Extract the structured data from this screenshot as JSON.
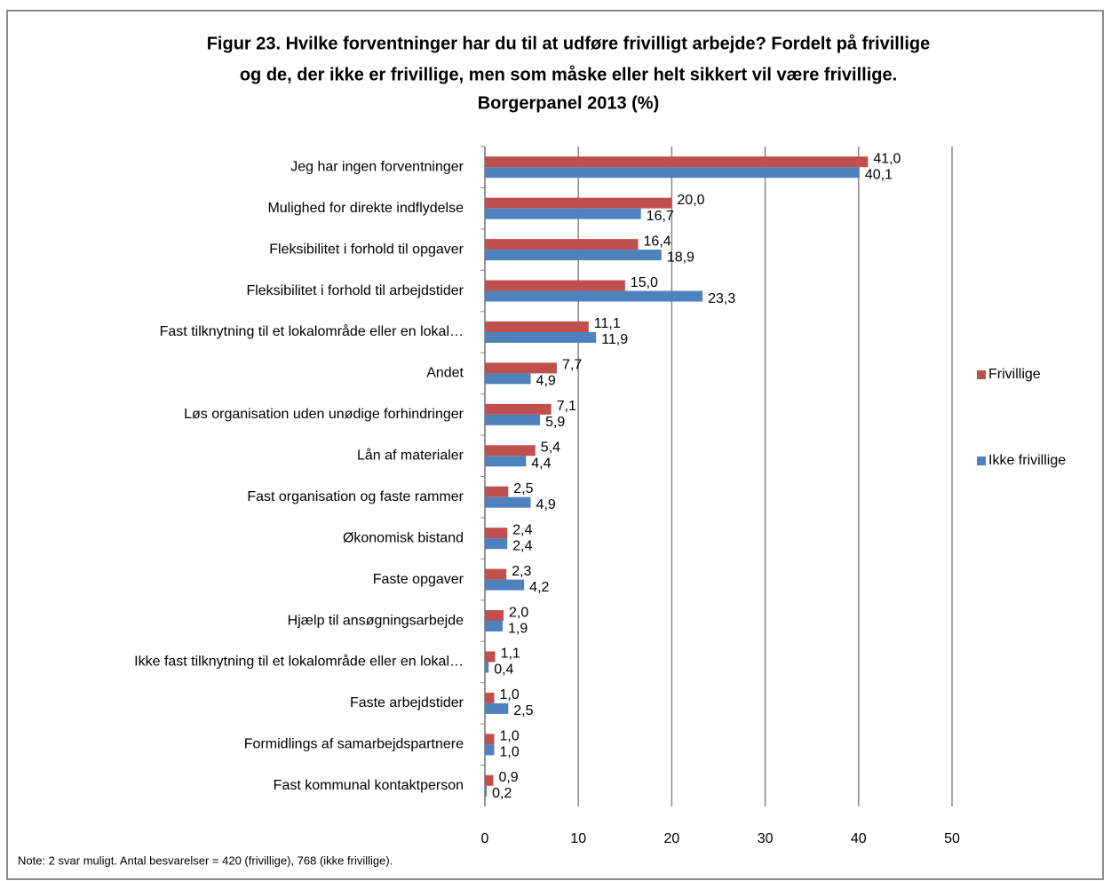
{
  "chart_data": {
    "type": "hbar",
    "title": [
      "Figur 23. Hvilke forventninger har du til at udføre frivilligt arbejde? Fordelt på frivillige",
      "og de, der ikke er frivillige, men som måske eller helt sikkert vil være frivillige.",
      "Borgerpanel 2013 (%)"
    ],
    "categories": [
      "Jeg har ingen forventninger",
      "Mulighed for direkte indflydelse",
      "Fleksibilitet i forhold til opgaver",
      "Fleksibilitet i forhold til arbejdstider",
      "Fast tilknytning til et lokalområde eller en lokal…",
      "Andet",
      "Løs organisation uden unødige forhindringer",
      "Lån af materialer",
      "Fast organisation og faste rammer",
      "Økonomisk bistand",
      "Faste opgaver",
      "Hjælp til ansøgningsarbejde",
      "Ikke fast tilknytning til et lokalområde eller en lokal…",
      "Faste arbejdstider",
      "Formidlings af samarbejdspartnere",
      "Fast kommunal kontaktperson"
    ],
    "series": [
      {
        "name": "Frivillige",
        "color": "#c0504d",
        "values": [
          41.0,
          20.0,
          16.4,
          15.0,
          11.1,
          7.7,
          7.1,
          5.4,
          2.5,
          2.4,
          2.3,
          2.0,
          1.1,
          1.0,
          1.0,
          0.9
        ],
        "value_labels": [
          "41,0",
          "20,0",
          "16,4",
          "15,0",
          "11,1",
          "7,7",
          "7,1",
          "5,4",
          "2,5",
          "2,4",
          "2,3",
          "2,0",
          "1,1",
          "1,0",
          "1,0",
          "0,9"
        ]
      },
      {
        "name": "Ikke frivillige",
        "color": "#4f81bd",
        "values": [
          40.1,
          16.7,
          18.9,
          23.3,
          11.9,
          4.9,
          5.9,
          4.4,
          4.9,
          2.4,
          4.2,
          1.9,
          0.4,
          2.5,
          1.0,
          0.2
        ],
        "value_labels": [
          "40,1",
          "16,7",
          "18,9",
          "23,3",
          "11,9",
          "4,9",
          "5,9",
          "4,4",
          "4,9",
          "2,4",
          "4,2",
          "1,9",
          "0,4",
          "2,5",
          "1,0",
          "0,2"
        ]
      }
    ],
    "xlim": [
      0,
      50
    ],
    "xticks": [
      0,
      10,
      20,
      30,
      40,
      50
    ],
    "grid": true,
    "legend": "right",
    "note": "Note:  2 svar muligt. Antal besvarelser = 420 (frivillige), 768 (ikke frivillige)."
  }
}
